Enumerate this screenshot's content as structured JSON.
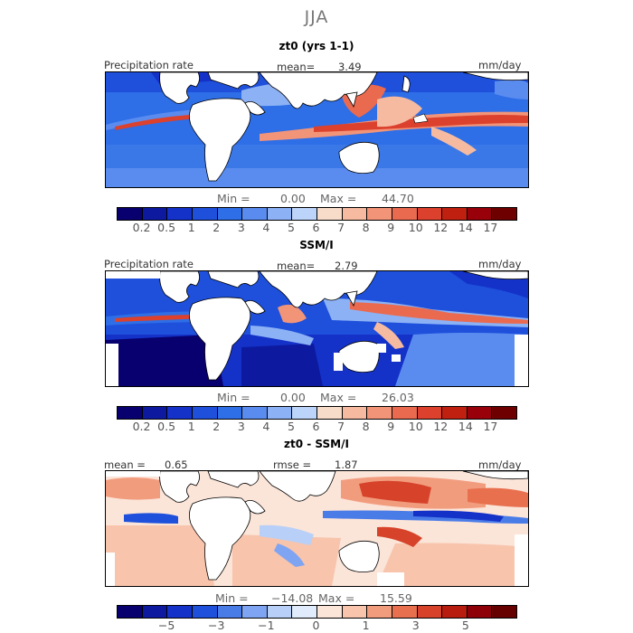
{
  "main_title": "JJA",
  "panels": [
    {
      "title": "zt0 (yrs 1-1)",
      "header_left": "Precipitation rate",
      "header_mid": "mean=",
      "header_mid_value": "3.49",
      "header_right": "mm/day",
      "min_label": "Min =",
      "min_value": "0.00",
      "max_label": "Max =",
      "max_value": "44.70",
      "ticks": [
        "0.2",
        "0.5",
        "1",
        "2",
        "3",
        "4",
        "5",
        "6",
        "7",
        "8",
        "9",
        "10",
        "12",
        "14",
        "17"
      ]
    },
    {
      "title": "SSM/I",
      "header_left": "Precipitation rate",
      "header_mid": "mean=",
      "header_mid_value": "2.79",
      "header_right": "mm/day",
      "min_label": "Min =",
      "min_value": "0.00",
      "max_label": "Max =",
      "max_value": "26.03",
      "ticks": [
        "0.2",
        "0.5",
        "1",
        "2",
        "3",
        "4",
        "5",
        "6",
        "7",
        "8",
        "9",
        "10",
        "12",
        "14",
        "17"
      ]
    },
    {
      "title": "zt0 - SSM/I",
      "header_left_label": "mean =",
      "header_left_value": "0.65",
      "header_mid": "rmse =",
      "header_mid_value": "1.87",
      "header_right": "mm/day",
      "min_label": "Min =",
      "min_value": "−14.08",
      "max_label": "Max =",
      "max_value": "15.59",
      "ticks": [
        "−5",
        "−3",
        "−1",
        "0",
        "1",
        "3",
        "5"
      ]
    }
  ],
  "colors": {
    "precip_scale": [
      "#08006e",
      "#0d1aa0",
      "#1432c8",
      "#1e50dc",
      "#2e6ee6",
      "#5a8cf0",
      "#8cb2f5",
      "#bcd4fa",
      "#f7dcca",
      "#f5baa0",
      "#f29478",
      "#ea6a50",
      "#dc412d",
      "#c0200f",
      "#98000a",
      "#6e0000"
    ],
    "diff_scale": [
      "#08006e",
      "#0d1aa0",
      "#1432c8",
      "#1e50dc",
      "#4a7ce8",
      "#7ea4f2",
      "#b8d0f8",
      "#e0ecfc",
      "#fbe4d8",
      "#f8c4ac",
      "#f29c7e",
      "#e8704e",
      "#d6432a",
      "#b81c0e",
      "#8e0008",
      "#660000"
    ]
  }
}
